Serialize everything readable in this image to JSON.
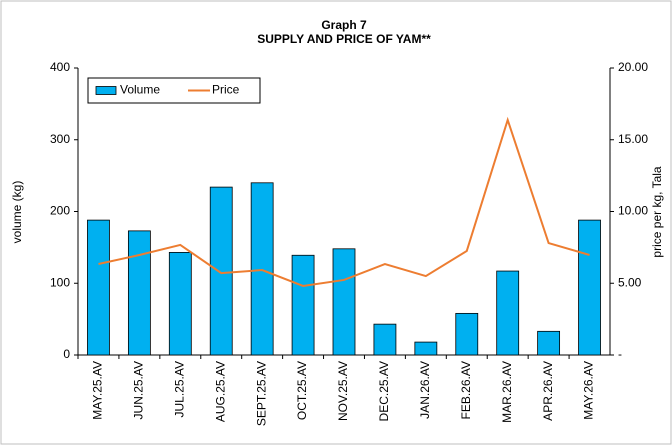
{
  "chart_data": {
    "type": "bar",
    "title": "Graph 7",
    "subtitle": "SUPPLY AND PRICE OF YAM**",
    "y_label": "volume (kg)",
    "y2_label": "price per kg, Tala",
    "categories": [
      "MAY.25.AV",
      "JUN.25.AV",
      "JUL.25.AV",
      "AUG.25.AV",
      "SEPT.25.AV",
      "OCT.25.AV",
      "NOV.25.AV",
      "DEC.25.AV",
      "JAN.26.AV",
      "FEB.26.AV",
      "MAR.26.AV",
      "APR.26.AV",
      "MAY.26.AV"
    ],
    "series": [
      {
        "name": "Volume",
        "type": "bar",
        "color": "#00b0f0",
        "values": [
          188,
          173,
          143,
          234,
          240,
          139,
          148,
          43,
          18,
          58,
          117,
          33,
          188
        ]
      },
      {
        "name": "Price",
        "type": "line",
        "axis": "y2",
        "color": "#ed7d31",
        "values": [
          6.34,
          6.97,
          7.67,
          5.71,
          5.92,
          4.81,
          5.23,
          6.34,
          5.5,
          7.25,
          16.38,
          7.8,
          6.97
        ]
      }
    ],
    "ylim": [
      0,
      400
    ],
    "yticks": [
      0,
      100,
      200,
      300,
      400
    ],
    "y2lim": [
      0,
      20
    ],
    "y2ticks": [
      {
        "value": 0,
        "label": "-"
      },
      {
        "value": 5,
        "label": "5.00"
      },
      {
        "value": 10,
        "label": "10.00"
      },
      {
        "value": 15,
        "label": "15.00"
      },
      {
        "value": 20,
        "label": "20.00"
      }
    ],
    "legend": "upper left"
  }
}
